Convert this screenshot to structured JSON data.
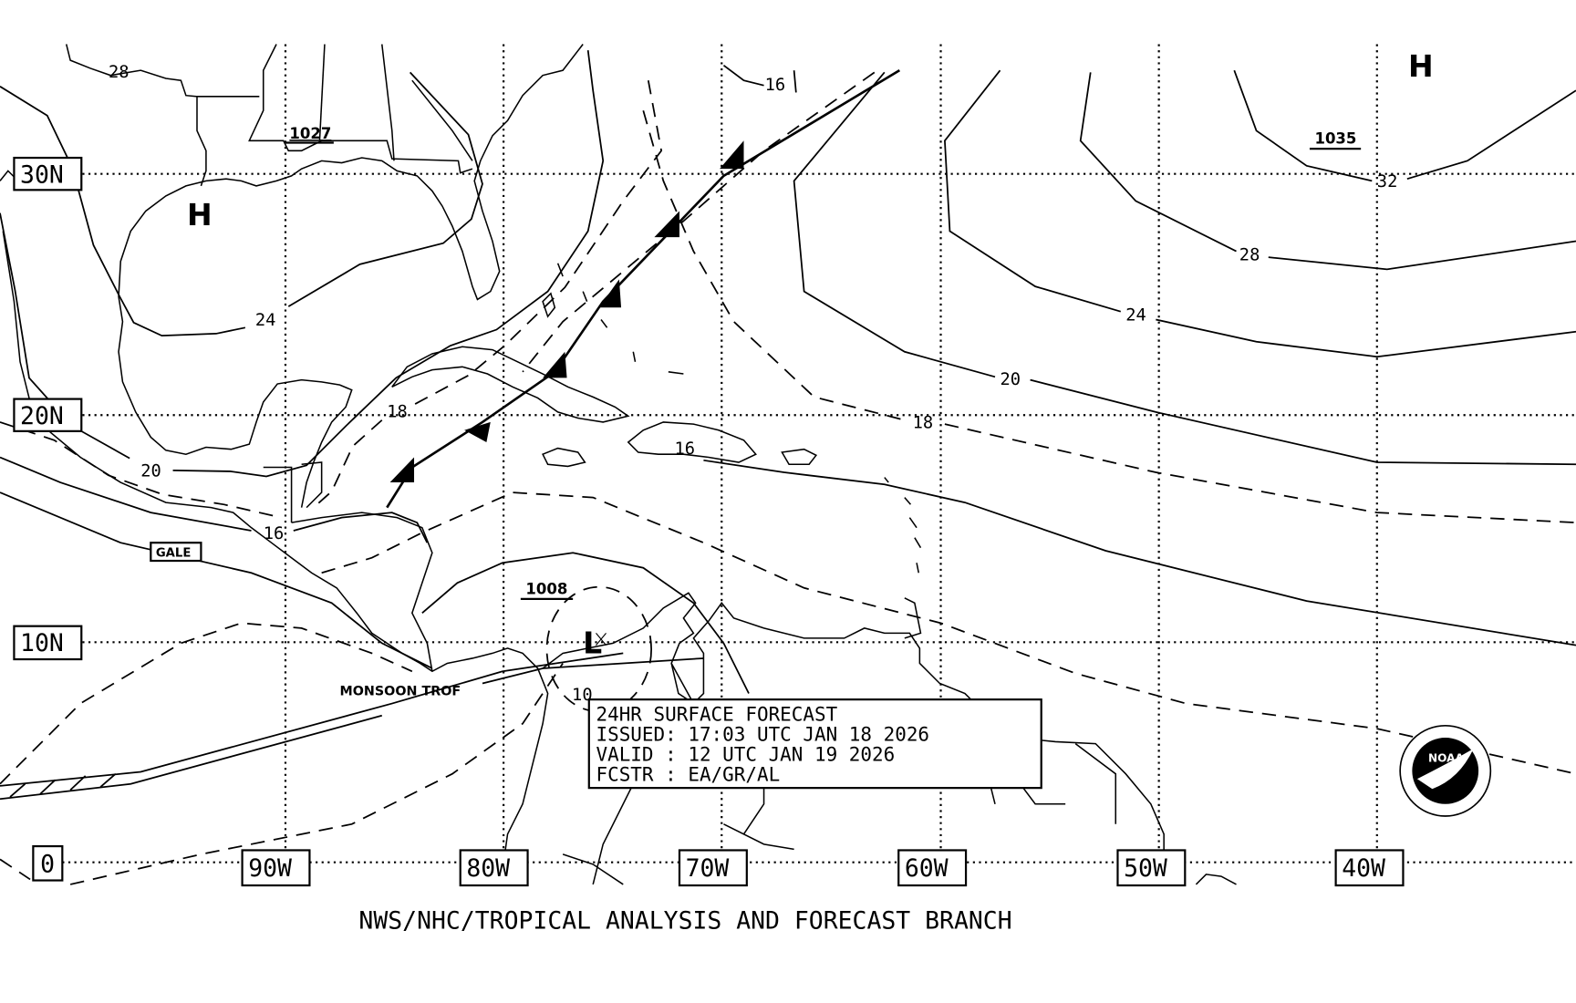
{
  "map": {
    "latitude_labels": [
      "30N",
      "20N",
      "10N",
      "0"
    ],
    "longitude_labels": [
      "90W",
      "80W",
      "70W",
      "60W",
      "50W",
      "40W"
    ],
    "highs": [
      {
        "symbol": "H",
        "central_pressure": "1027"
      },
      {
        "symbol": "H",
        "central_pressure": "1035"
      }
    ],
    "lows": [
      {
        "symbol": "L",
        "central_pressure": "1008"
      }
    ],
    "isobar_labels": [
      "28",
      "24",
      "18",
      "20",
      "16",
      "16",
      "16",
      "18",
      "20",
      "24",
      "28",
      "32",
      "10"
    ],
    "feature_labels": {
      "gale": "GALE",
      "monsoon_trough": "MONSOON TROF"
    },
    "logo": {
      "text": "NOAA"
    }
  },
  "info_box": {
    "line1": "24HR SURFACE FORECAST",
    "line2": "ISSUED: 17:03 UTC JAN 18 2026",
    "line3": "VALID : 12 UTC JAN 19 2026",
    "line4": "FCSTR : EA/GR/AL"
  },
  "footer": "NWS/NHC/TROPICAL ANALYSIS AND FORECAST BRANCH"
}
